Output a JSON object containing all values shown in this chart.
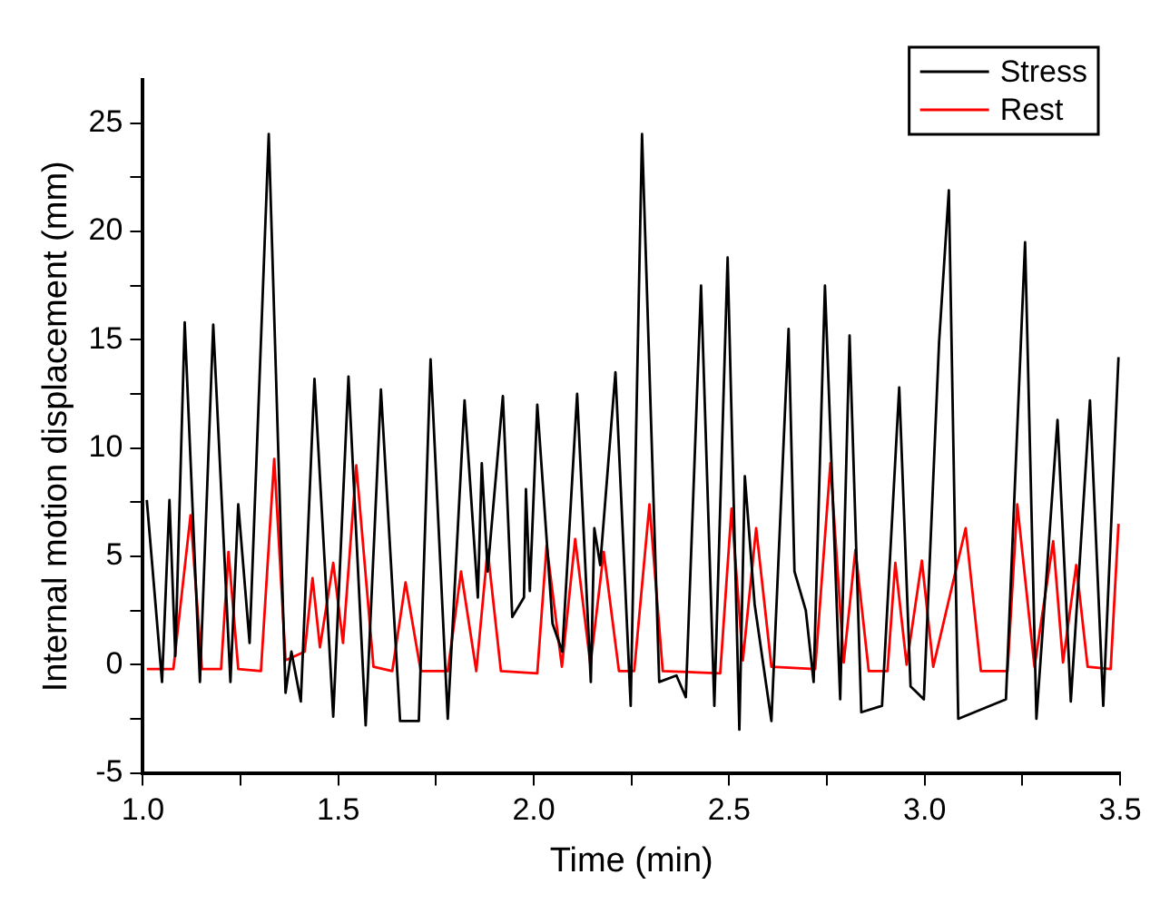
{
  "chart_data": {
    "type": "line",
    "xlabel": "Time (min)",
    "ylabel": "Internal motion displacement (mm)",
    "xlim": [
      1.0,
      3.5
    ],
    "xticks": [
      {
        "value": 1.0,
        "label": "1.0"
      },
      {
        "value": 1.25,
        "label": null
      },
      {
        "value": 1.5,
        "label": "1.5"
      },
      {
        "value": 1.75,
        "label": null
      },
      {
        "value": 2.0,
        "label": "2.0"
      },
      {
        "value": 2.25,
        "label": null
      },
      {
        "value": 2.5,
        "label": "2.5"
      },
      {
        "value": 2.75,
        "label": null
      },
      {
        "value": 3.0,
        "label": "3.0"
      },
      {
        "value": 3.25,
        "label": null
      },
      {
        "value": 3.5,
        "label": "3.5"
      }
    ],
    "ylim": [
      -5,
      27
    ],
    "yticks": [
      -5,
      {
        "value": -2.5,
        "label": null
      },
      0,
      {
        "value": 2.5,
        "label": null
      },
      5,
      {
        "value": 7.5,
        "label": null
      },
      10,
      {
        "value": 12.5,
        "label": null
      },
      15,
      {
        "value": 17.5,
        "label": null
      },
      20,
      {
        "value": 22.5,
        "label": null
      },
      25
    ],
    "grid": false,
    "legend": "top right",
    "marker": "none",
    "line_style": "solid",
    "series": [
      {
        "name": "Stress",
        "color": "#000000",
        "x": [
          1.01,
          1.049,
          1.068,
          1.083,
          1.107,
          1.146,
          1.18,
          1.224,
          1.244,
          1.273,
          1.322,
          1.365,
          1.38,
          1.404,
          1.439,
          1.487,
          1.526,
          1.57,
          1.609,
          1.658,
          1.706,
          1.736,
          1.78,
          1.823,
          1.857,
          1.867,
          1.882,
          1.921,
          1.945,
          1.975,
          1.98,
          1.99,
          2.009,
          2.048,
          2.073,
          2.111,
          2.146,
          2.155,
          2.17,
          2.209,
          2.248,
          2.277,
          2.321,
          2.365,
          2.389,
          2.428,
          2.462,
          2.496,
          2.526,
          2.54,
          2.565,
          2.608,
          2.652,
          2.667,
          2.696,
          2.716,
          2.745,
          2.784,
          2.808,
          2.838,
          2.891,
          2.935,
          2.964,
          2.998,
          3.037,
          3.062,
          3.086,
          3.208,
          3.257,
          3.286,
          3.34,
          3.374,
          3.423,
          3.457,
          3.496
        ],
        "values": [
          7.6,
          -0.8,
          7.6,
          0.4,
          15.8,
          -0.8,
          15.7,
          -0.8,
          7.4,
          1.0,
          24.5,
          -1.3,
          0.6,
          -1.7,
          13.2,
          -2.4,
          13.3,
          -2.8,
          12.7,
          -2.6,
          -2.6,
          14.1,
          -2.5,
          12.2,
          3.1,
          9.3,
          4.3,
          12.4,
          2.2,
          3.1,
          8.1,
          3.4,
          12.0,
          1.9,
          0.6,
          12.5,
          -0.8,
          6.3,
          4.6,
          13.5,
          -1.9,
          24.5,
          -0.8,
          -0.5,
          -1.5,
          17.5,
          -1.9,
          18.8,
          -3.0,
          8.7,
          2.8,
          -2.6,
          15.5,
          4.3,
          2.5,
          -0.8,
          17.5,
          -1.6,
          15.2,
          -2.2,
          -1.9,
          12.8,
          -1.0,
          -1.6,
          14.9,
          21.9,
          -2.5,
          -1.6,
          19.5,
          -2.5,
          11.3,
          -1.7,
          12.2,
          -1.9,
          14.2
        ]
      },
      {
        "name": "Rest",
        "color": "#ff0000",
        "x": [
          1.01,
          1.078,
          1.122,
          1.151,
          1.2,
          1.219,
          1.244,
          1.302,
          1.336,
          1.365,
          1.414,
          1.434,
          1.453,
          1.487,
          1.512,
          1.546,
          1.59,
          1.638,
          1.672,
          1.711,
          1.78,
          1.814,
          1.853,
          1.882,
          1.916,
          2.009,
          2.033,
          2.072,
          2.106,
          2.145,
          2.179,
          2.218,
          2.257,
          2.296,
          2.33,
          2.477,
          2.506,
          2.535,
          2.569,
          2.608,
          2.72,
          2.759,
          2.793,
          2.823,
          2.857,
          2.905,
          2.925,
          2.954,
          2.993,
          3.022,
          3.105,
          3.144,
          3.212,
          3.237,
          3.281,
          3.329,
          3.354,
          3.388,
          3.417,
          3.476,
          3.496
        ],
        "values": [
          -0.2,
          -0.2,
          6.9,
          -0.2,
          -0.2,
          5.2,
          -0.2,
          -0.3,
          9.5,
          0.2,
          0.6,
          4.0,
          0.8,
          4.7,
          1.0,
          9.2,
          -0.1,
          -0.3,
          3.8,
          -0.3,
          -0.3,
          4.3,
          -0.3,
          5.3,
          -0.3,
          -0.4,
          5.5,
          -0.1,
          5.8,
          0.0,
          5.2,
          -0.3,
          -0.3,
          7.4,
          -0.3,
          -0.4,
          7.2,
          0.2,
          6.3,
          -0.1,
          -0.2,
          9.3,
          0.1,
          5.3,
          -0.3,
          -0.3,
          4.7,
          0.0,
          4.8,
          -0.1,
          6.3,
          -0.3,
          -0.3,
          7.4,
          -0.1,
          5.7,
          0.1,
          4.6,
          -0.1,
          -0.2,
          6.5
        ]
      }
    ]
  }
}
